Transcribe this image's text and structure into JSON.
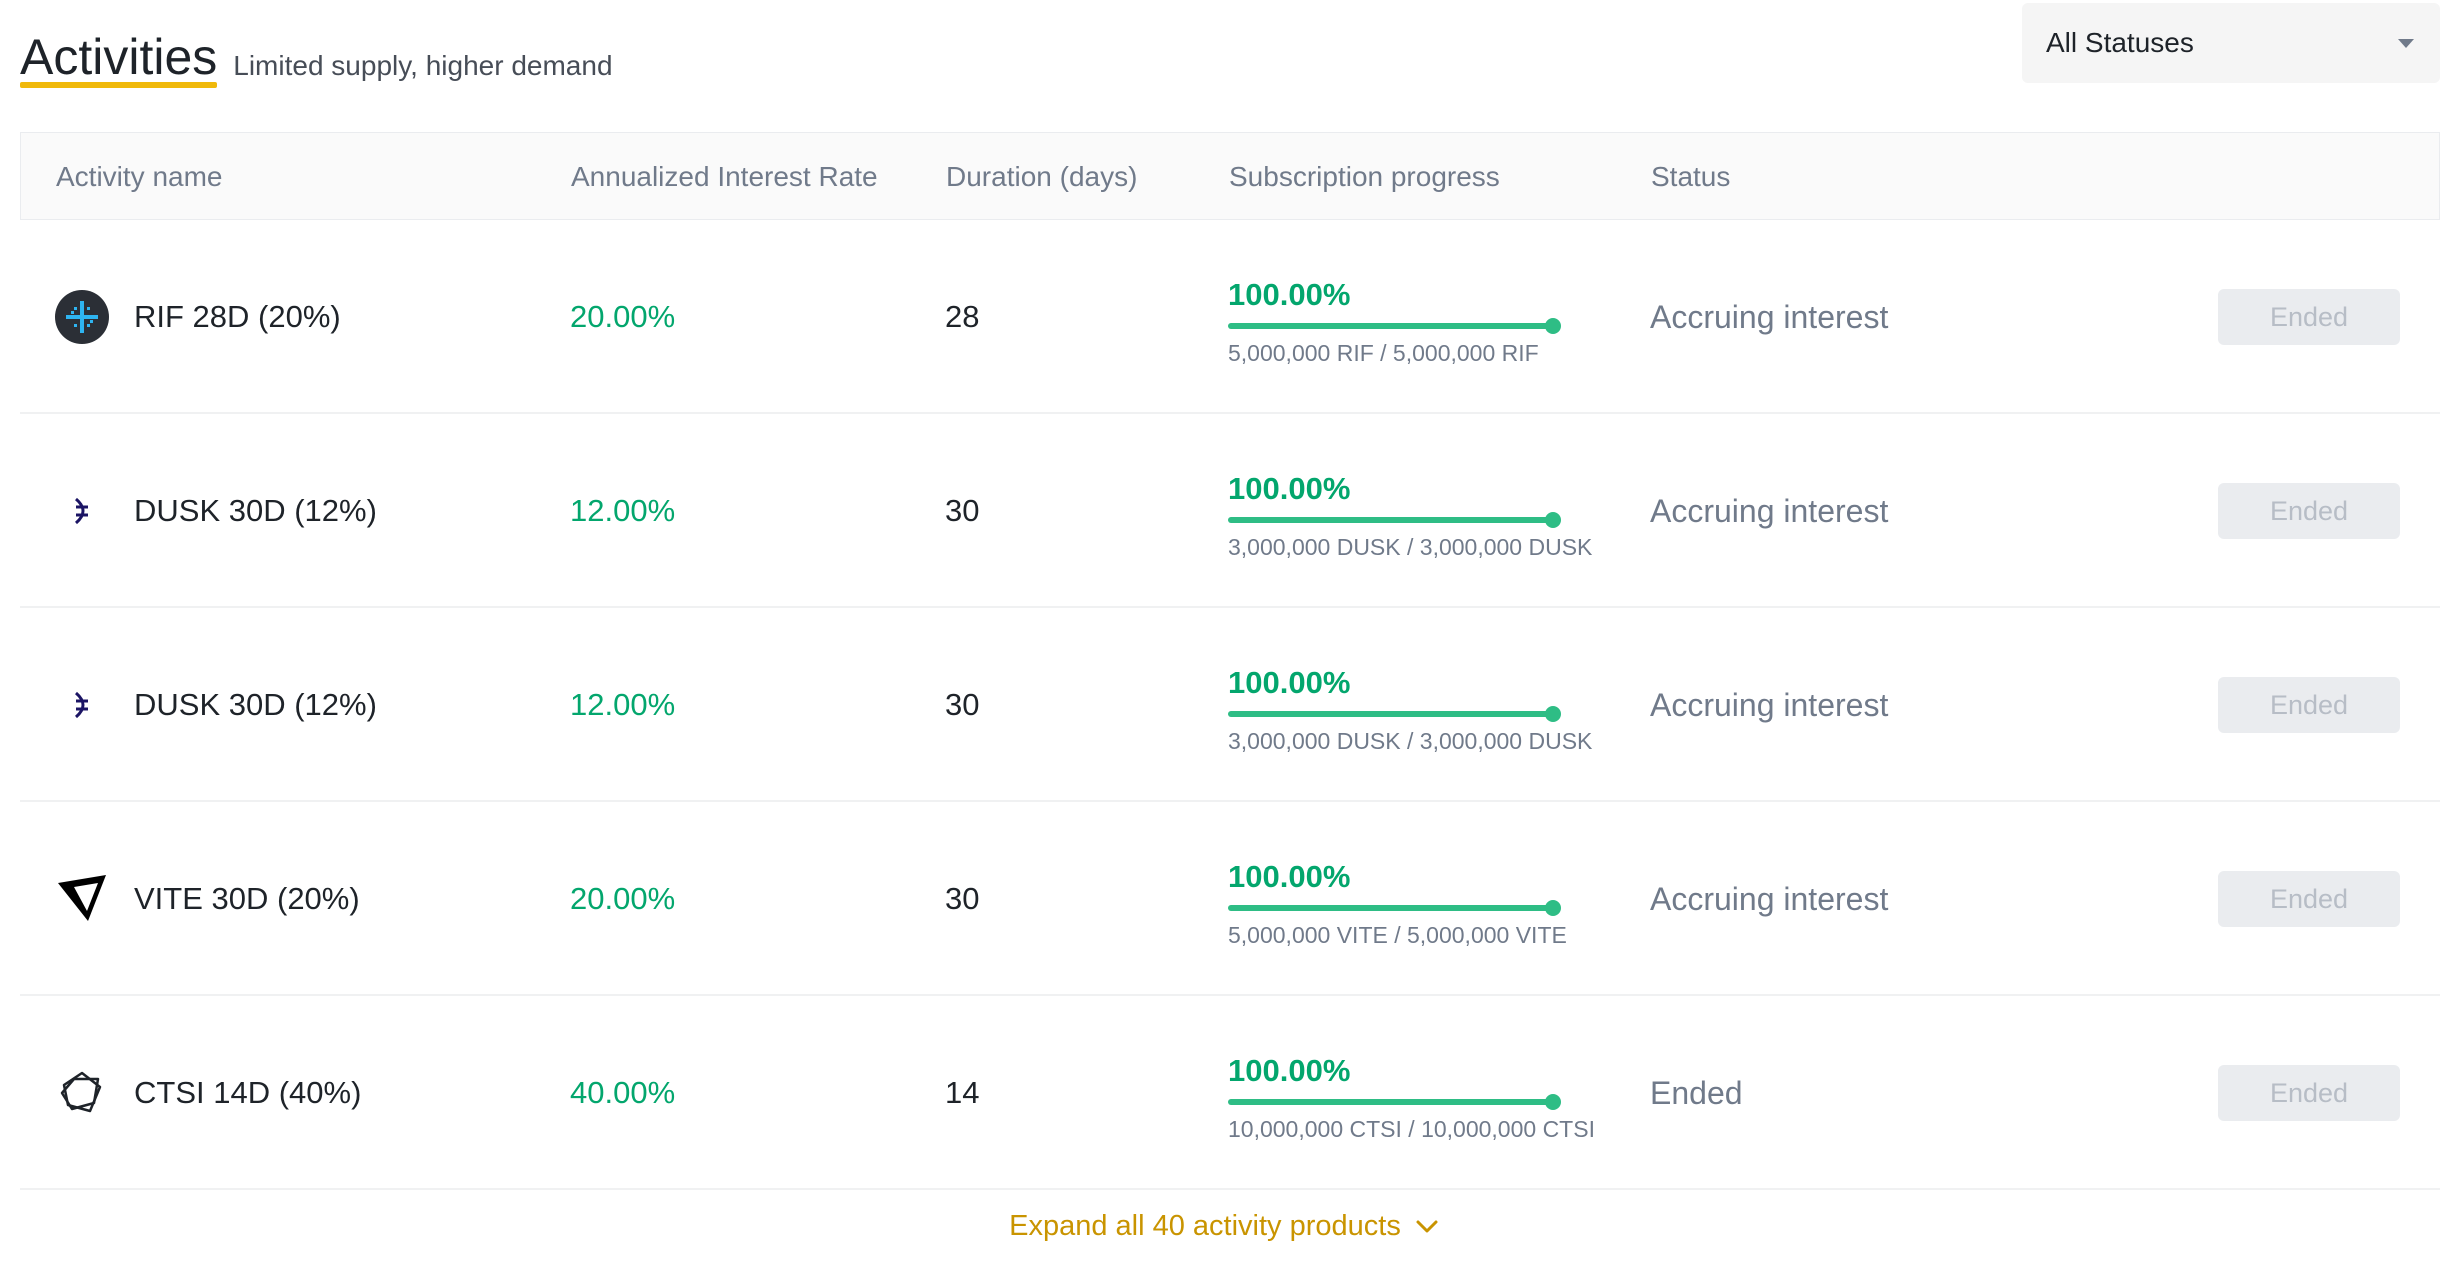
{
  "header": {
    "title": "Activities",
    "subtitle": "Limited supply, higher demand"
  },
  "filter": {
    "selected": "All Statuses"
  },
  "table": {
    "columns": [
      "Activity name",
      "Annualized Interest Rate",
      "Duration (days)",
      "Subscription progress",
      "Status"
    ],
    "rows": [
      {
        "icon": "rif-icon",
        "name": "RIF 28D (20%)",
        "rate": "20.00%",
        "duration": "28",
        "progress_pct": "100.00%",
        "progress_fraction": 1.0,
        "amount": "5,000,000 RIF / 5,000,000 RIF",
        "status": "Accruing interest",
        "action": "Ended"
      },
      {
        "icon": "dusk-icon",
        "name": "DUSK 30D (12%)",
        "rate": "12.00%",
        "duration": "30",
        "progress_pct": "100.00%",
        "progress_fraction": 1.0,
        "amount": "3,000,000 DUSK / 3,000,000 DUSK",
        "status": "Accruing interest",
        "action": "Ended"
      },
      {
        "icon": "dusk-icon",
        "name": "DUSK 30D (12%)",
        "rate": "12.00%",
        "duration": "30",
        "progress_pct": "100.00%",
        "progress_fraction": 1.0,
        "amount": "3,000,000 DUSK / 3,000,000 DUSK",
        "status": "Accruing interest",
        "action": "Ended"
      },
      {
        "icon": "vite-icon",
        "name": "VITE 30D (20%)",
        "rate": "20.00%",
        "duration": "30",
        "progress_pct": "100.00%",
        "progress_fraction": 1.0,
        "amount": "5,000,000 VITE / 5,000,000 VITE",
        "status": "Accruing interest",
        "action": "Ended"
      },
      {
        "icon": "ctsi-icon",
        "name": "CTSI 14D (40%)",
        "rate": "40.00%",
        "duration": "14",
        "progress_pct": "100.00%",
        "progress_fraction": 1.0,
        "amount": "10,000,000 CTSI / 10,000,000 CTSI",
        "status": "Ended",
        "action": "Ended"
      }
    ]
  },
  "expand": {
    "label": "Expand all 40 activity products"
  },
  "colors": {
    "accent": "#f0b90b",
    "positive": "#03a66d",
    "progress": "#2ebd85",
    "link": "#c99400"
  }
}
